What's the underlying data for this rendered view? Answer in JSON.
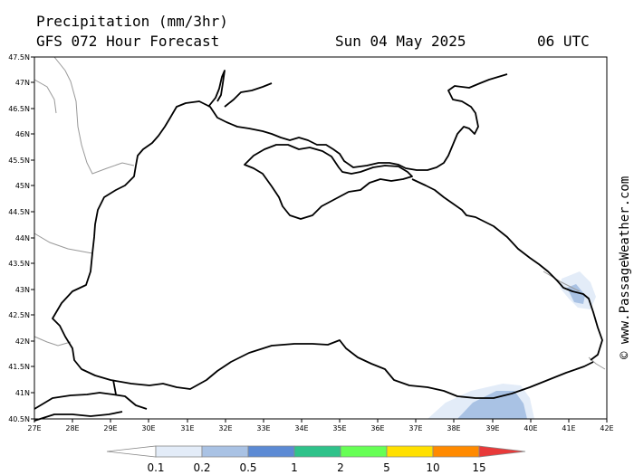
{
  "header": {
    "title": "Precipitation (mm/3hr)",
    "model_line": "GFS 072 Hour Forecast",
    "date": "Sun 04 May 2025",
    "time": "06 UTC"
  },
  "credit": "© www.PassageWeather.com",
  "map": {
    "region": "Black Sea",
    "lat_labels": [
      "47.5N",
      "47N",
      "46.5N",
      "46N",
      "45.5N",
      "45N",
      "44.5N",
      "44N",
      "43.5N",
      "43N",
      "42.5N",
      "42N",
      "41.5N",
      "41N",
      "40.5N"
    ],
    "lon_labels": [
      "27E",
      "28E",
      "29E",
      "30E",
      "31E",
      "32E",
      "33E",
      "34E",
      "35E",
      "36E",
      "37E",
      "38E",
      "39E",
      "40E",
      "41E",
      "42E"
    ],
    "precip_areas": [
      {
        "location": "east coast near 41.5E 42.8N",
        "level": 0.2
      },
      {
        "location": "south-east coast near 39E 40.6N",
        "level": 0.5
      }
    ]
  },
  "legend": {
    "labels": [
      "0.1",
      "0.2",
      "0.5",
      "1",
      "2",
      "5",
      "10",
      "15"
    ],
    "colors": [
      "#ffffff",
      "#e3ecf8",
      "#a9c2e4",
      "#5c8ad4",
      "#2fc28a",
      "#66ff55",
      "#ffe000",
      "#ff8a00",
      "#e83a3a"
    ]
  }
}
